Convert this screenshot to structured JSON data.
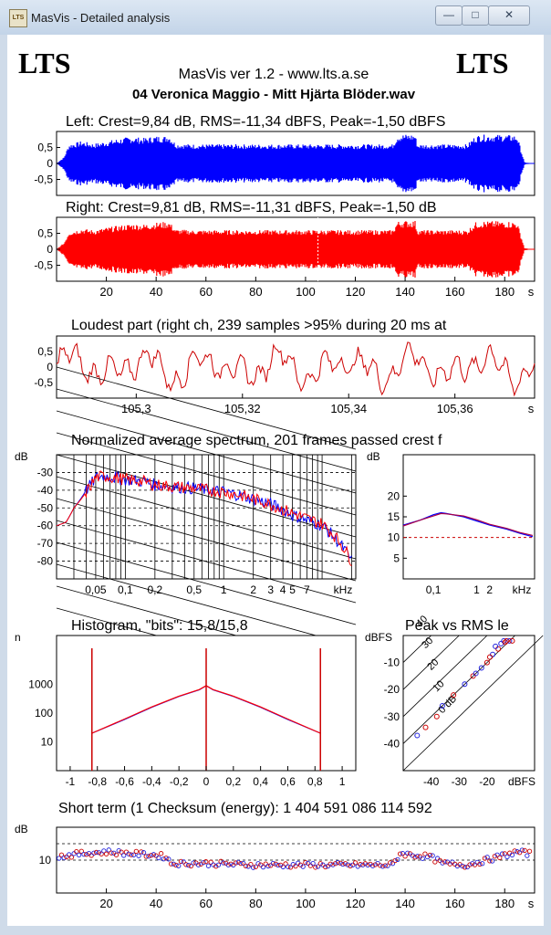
{
  "window": {
    "title": "MasVis - Detailed analysis",
    "icon_label": "LTS",
    "buttons": [
      "minimize-icon",
      "maximize-icon",
      "close-icon"
    ]
  },
  "header": {
    "logo_left": "LTS",
    "logo_right": "LTS",
    "app_line": "MasVis ver 1.2 - www.lts.a.se",
    "file_name": "04 Veronica Maggio - Mitt Hjärta Blöder.wav"
  },
  "colors": {
    "left_channel": "#0000ff",
    "right_channel": "#ff0000",
    "line_red": "#cc0000",
    "grid": "#000000"
  },
  "chart_data": [
    {
      "id": "left",
      "type": "area",
      "title": "Left: Crest=9,84 dB, RMS=-11,34 dBFS, Peak=-1,50 dBFS",
      "y_ticks": [
        "0,5",
        "0",
        "-0,5"
      ],
      "xlim": [
        0,
        192
      ],
      "ylim": [
        -1,
        1
      ],
      "envelope": {
        "x": [
          0,
          3,
          5,
          10,
          15,
          20,
          25,
          30,
          35,
          40,
          44,
          45,
          48,
          55,
          65,
          75,
          85,
          95,
          105,
          115,
          125,
          135,
          137,
          140,
          144,
          145,
          150,
          155,
          160,
          165,
          168,
          170,
          175,
          180,
          185,
          187,
          188,
          192
        ],
        "amp": [
          0,
          0.2,
          0.6,
          0.7,
          0.62,
          0.7,
          0.78,
          0.84,
          0.8,
          0.86,
          0.86,
          0.9,
          0.62,
          0.6,
          0.6,
          0.6,
          0.6,
          0.6,
          0.6,
          0.6,
          0.6,
          0.6,
          0.9,
          0.92,
          0.92,
          0.6,
          0.6,
          0.6,
          0.6,
          0.6,
          0.85,
          0.9,
          0.9,
          0.9,
          0.88,
          0.3,
          0.03,
          0
        ]
      }
    },
    {
      "id": "right",
      "type": "area",
      "title": "Right: Crest=9,81 dB, RMS=-11,31 dBFS, Peak=-1,50 dB",
      "y_ticks": [
        "0,5",
        "0",
        "-0,5"
      ],
      "x_ticks": [
        "20",
        "40",
        "60",
        "80",
        "100",
        "120",
        "140",
        "160",
        "180"
      ],
      "x_unit": "s",
      "xlim": [
        0,
        192
      ],
      "ylim": [
        -1,
        1
      ],
      "marker_x": 105,
      "envelope": {
        "x": [
          0,
          3,
          5,
          10,
          15,
          20,
          25,
          30,
          35,
          40,
          44,
          45,
          48,
          55,
          65,
          75,
          85,
          95,
          105,
          115,
          125,
          135,
          137,
          140,
          144,
          145,
          150,
          155,
          160,
          165,
          168,
          170,
          175,
          180,
          185,
          187,
          188,
          192
        ],
        "amp": [
          0,
          0.2,
          0.55,
          0.65,
          0.6,
          0.68,
          0.74,
          0.8,
          0.78,
          0.84,
          0.86,
          0.88,
          0.62,
          0.6,
          0.6,
          0.6,
          0.6,
          0.6,
          0.6,
          0.6,
          0.6,
          0.6,
          0.88,
          0.9,
          0.9,
          0.6,
          0.6,
          0.6,
          0.6,
          0.6,
          0.84,
          0.88,
          0.88,
          0.88,
          0.86,
          0.3,
          0.03,
          0
        ]
      }
    },
    {
      "id": "loudest",
      "type": "line",
      "title": "Loudest part (right ch, 239 samples >95% during 20 ms at",
      "y_ticks": [
        "0,5",
        "0",
        "-0,5"
      ],
      "x_ticks": [
        "105,3",
        "105,32",
        "105,34",
        "105,36"
      ],
      "x_unit": "s",
      "xlim": [
        105.285,
        105.375
      ],
      "ylim": [
        -1,
        1
      ]
    },
    {
      "id": "spectrum",
      "type": "line",
      "title": "Normalized average spectrum, 201 frames passed crest f",
      "ylabel": "dB",
      "y_ticks": [
        "-30",
        "-40",
        "-50",
        "-60",
        "-70",
        "-80"
      ],
      "x_ticks": [
        "0,05",
        "0,1",
        "0,2",
        "0,5",
        "1",
        "2",
        "3",
        "4",
        "5",
        "7"
      ],
      "x_unit": "kHz",
      "x_scale": "log",
      "xlim": [
        0.02,
        22
      ],
      "ylim": [
        -90,
        -20
      ],
      "series": [
        {
          "color": "#0000ff",
          "x": [
            0.02,
            0.025,
            0.03,
            0.04,
            0.05,
            0.06,
            0.08,
            0.1,
            0.15,
            0.2,
            0.3,
            0.5,
            0.7,
            1,
            1.5,
            2,
            3,
            4,
            5,
            7,
            10,
            12,
            15,
            20
          ],
          "y": [
            -60,
            -58,
            -50,
            -40,
            -33,
            -32,
            -33,
            -34,
            -35,
            -37,
            -38,
            -39,
            -40,
            -41,
            -43,
            -45,
            -48,
            -51,
            -54,
            -57,
            -60,
            -64,
            -70,
            -80
          ]
        },
        {
          "color": "#ff0000",
          "x": [
            0.02,
            0.025,
            0.03,
            0.04,
            0.05,
            0.06,
            0.08,
            0.1,
            0.15,
            0.2,
            0.3,
            0.5,
            0.7,
            1,
            1.5,
            2,
            3,
            4,
            5,
            7,
            10,
            12,
            15,
            20
          ],
          "y": [
            -60,
            -58,
            -50,
            -41,
            -33,
            -32,
            -33,
            -34,
            -35,
            -37,
            -38,
            -39,
            -40,
            -41,
            -43,
            -45,
            -48,
            -51,
            -53,
            -56,
            -59,
            -63,
            -69,
            -80
          ]
        }
      ]
    },
    {
      "id": "crest_spectrum",
      "type": "line",
      "ylabel": "dB",
      "y_ticks": [
        "20",
        "15",
        "10",
        "5"
      ],
      "x_ticks": [
        "0,1",
        "1",
        "2"
      ],
      "x_unit": "kHz",
      "x_scale": "log",
      "xlim": [
        0.02,
        22
      ],
      "ylim": [
        0,
        30
      ],
      "ref_line_y": 10,
      "series": [
        {
          "color": "#0000ff",
          "x": [
            0.02,
            0.05,
            0.1,
            0.15,
            0.2,
            0.5,
            1,
            2,
            5,
            10,
            20
          ],
          "y": [
            13,
            14.2,
            15.5,
            16,
            15.8,
            15,
            14,
            13,
            12,
            11,
            10.2
          ]
        },
        {
          "color": "#aa0044",
          "x": [
            0.02,
            0.05,
            0.1,
            0.15,
            0.2,
            0.5,
            1,
            2,
            5,
            10,
            20
          ],
          "y": [
            12.8,
            14.2,
            15.2,
            15.8,
            15.7,
            15.2,
            14.3,
            13.2,
            12.2,
            11.2,
            10.5
          ]
        }
      ]
    },
    {
      "id": "histogram",
      "type": "line",
      "title": "Histogram, \"bits\": 15,8/15,8",
      "ylabel": "n",
      "y_ticks": [
        "1000",
        "100",
        "10"
      ],
      "y_scale": "log",
      "x_ticks": [
        "-1",
        "-0,8",
        "-0,6",
        "-0,4",
        "-0,2",
        "0",
        "0,2",
        "0,4",
        "0,6",
        "0,8",
        "1"
      ],
      "xlim": [
        -1.1,
        1.1
      ],
      "ylim": [
        1,
        50000
      ],
      "series": [
        {
          "color": "#0000ff",
          "x": [
            -0.84,
            -0.6,
            -0.4,
            -0.2,
            -0.05,
            0,
            0.05,
            0.2,
            0.4,
            0.6,
            0.84
          ],
          "y": [
            20,
            60,
            160,
            380,
            650,
            900,
            650,
            380,
            160,
            60,
            20
          ]
        },
        {
          "color": "#ff0000",
          "x": [
            -0.84,
            -0.6,
            -0.4,
            -0.2,
            -0.05,
            0,
            0.05,
            0.2,
            0.4,
            0.6,
            0.84
          ],
          "y": [
            20,
            62,
            165,
            390,
            660,
            900,
            660,
            390,
            165,
            62,
            20
          ]
        }
      ],
      "spikes_x": [
        -0.84,
        0,
        0.84
      ]
    },
    {
      "id": "peak_vs_rms",
      "type": "scatter",
      "title": "Peak vs RMS le",
      "ylabel": "dBFS",
      "y_ticks": [
        "-10",
        "-20",
        "-30",
        "-40"
      ],
      "x_ticks": [
        "-40",
        "-30",
        "-20",
        "dBFS"
      ],
      "xlim": [
        -50,
        -3
      ],
      "ylim": [
        -50,
        0
      ],
      "crest_lines": [
        "40",
        "30",
        "20",
        "10",
        "0 dB"
      ],
      "points": [
        {
          "rms": -14,
          "peak": -2
        },
        {
          "rms": -13,
          "peak": -2
        },
        {
          "rms": -12,
          "peak": -2
        },
        {
          "rms": -11,
          "peak": -2
        },
        {
          "rms": -15,
          "peak": -3
        },
        {
          "rms": -16,
          "peak": -5
        },
        {
          "rms": -18,
          "peak": -7
        },
        {
          "rms": -20,
          "peak": -10
        },
        {
          "rms": -22,
          "peak": -12
        },
        {
          "rms": -25,
          "peak": -15
        },
        {
          "rms": -28,
          "peak": -18
        },
        {
          "rms": -32,
          "peak": -22
        },
        {
          "rms": -36,
          "peak": -26
        },
        {
          "rms": -42,
          "peak": -34
        },
        {
          "rms": -45,
          "peak": -37
        },
        {
          "rms": -38,
          "peak": -30
        },
        {
          "rms": -17,
          "peak": -4
        },
        {
          "rms": -19,
          "peak": -8
        },
        {
          "rms": -24,
          "peak": -14
        },
        {
          "rms": -13.5,
          "peak": -2.5
        }
      ]
    },
    {
      "id": "short_term",
      "type": "scatter",
      "title": "Short term (1 Checksum (energy):  1 404 591 086 114 592",
      "ylabel": "dB",
      "y_ticks": [
        "10"
      ],
      "x_ticks": [
        "20",
        "40",
        "60",
        "80",
        "100",
        "120",
        "140",
        "160",
        "180"
      ],
      "x_unit": "s",
      "xlim": [
        0,
        192
      ],
      "ylim": [
        0,
        20
      ],
      "ref_lines_y": [
        10,
        15
      ],
      "envelope": {
        "x": [
          0,
          10,
          20,
          30,
          40,
          44,
          46,
          60,
          80,
          100,
          120,
          135,
          138,
          150,
          155,
          165,
          180,
          185,
          190
        ],
        "y": [
          11,
          12,
          12.5,
          12,
          11.5,
          11,
          9,
          9,
          8.5,
          8.5,
          8.5,
          8.5,
          12,
          11,
          9,
          8.5,
          11.5,
          12.5,
          12
        ]
      }
    }
  ]
}
